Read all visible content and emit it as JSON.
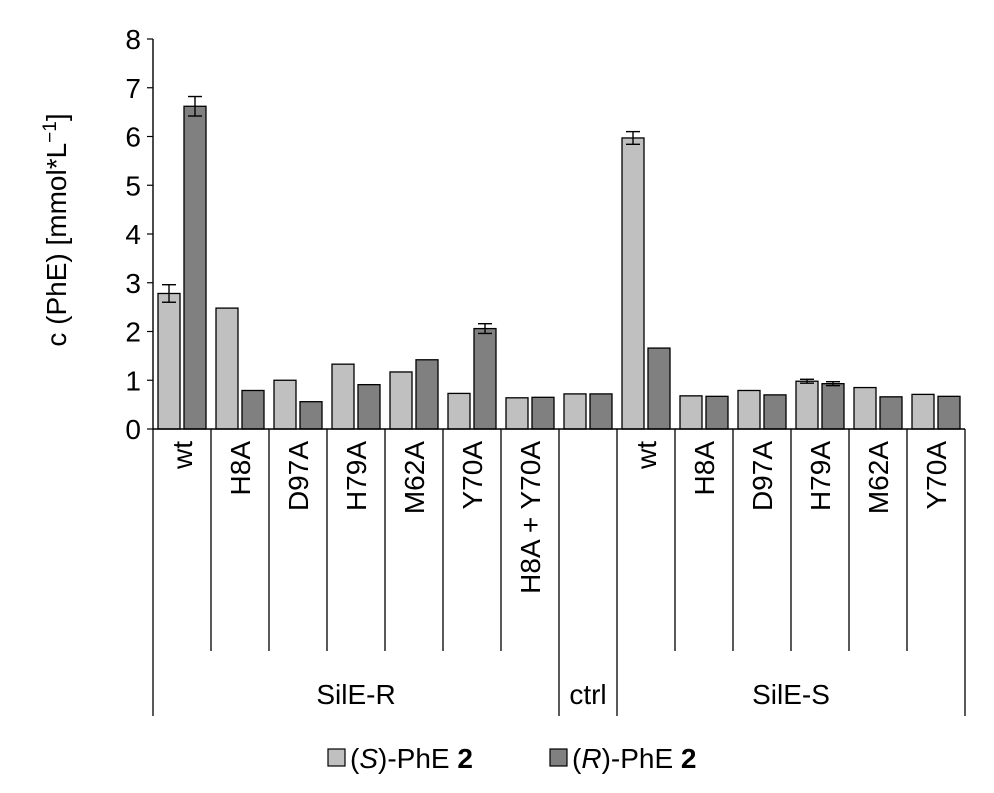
{
  "chart_data": {
    "type": "bar",
    "ylabel_parts": [
      "c (PhE) [mmol*L",
      "−1",
      "]"
    ],
    "ylim": [
      0,
      8
    ],
    "yticks": [
      "0",
      "1",
      "2",
      "3",
      "4",
      "5",
      "6",
      "7",
      "8"
    ],
    "legend_position": "bottom",
    "categories": [
      "wt",
      "H8A",
      "D97A",
      "H79A",
      "M62A",
      "Y70A",
      "H8A + Y70A",
      "",
      "wt",
      "H8A",
      "D97A",
      "H79A",
      "M62A",
      "Y70A"
    ],
    "groups": [
      {
        "label": "SilE-R",
        "start": 0,
        "end": 6
      },
      {
        "label": "ctrl",
        "start": 7,
        "end": 7
      },
      {
        "label": "SilE-S",
        "start": 8,
        "end": 13
      }
    ],
    "series": [
      {
        "name_parts": [
          "(",
          "S",
          ")-PhE ",
          "2"
        ],
        "color": "#c0c0c0",
        "values": [
          2.78,
          2.48,
          1.0,
          1.33,
          1.17,
          0.73,
          0.64,
          0.72,
          5.97,
          0.68,
          0.79,
          0.98,
          0.85,
          0.71
        ],
        "errors": [
          0.18,
          0.0,
          0.0,
          0.0,
          0.0,
          0.0,
          0.0,
          0.0,
          0.13,
          0.0,
          0.0,
          0.04,
          0.0,
          0.0
        ]
      },
      {
        "name_parts": [
          "(",
          "R",
          ")-PhE ",
          "2"
        ],
        "color": "#808080",
        "values": [
          6.62,
          0.79,
          0.56,
          0.91,
          1.42,
          2.06,
          0.65,
          0.72,
          1.66,
          0.67,
          0.7,
          0.93,
          0.66,
          0.67
        ],
        "errors": [
          0.2,
          0.0,
          0.0,
          0.0,
          0.0,
          0.1,
          0.0,
          0.0,
          0.0,
          0.0,
          0.0,
          0.04,
          0.0,
          0.0
        ]
      }
    ]
  }
}
